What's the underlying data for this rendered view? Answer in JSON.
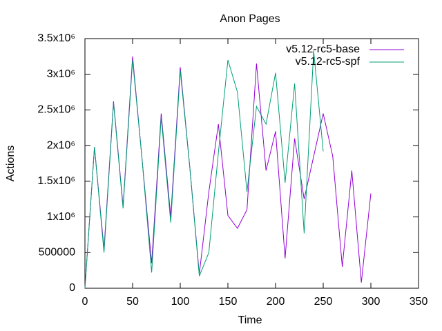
{
  "chart_data": {
    "type": "line",
    "title": "Anon Pages",
    "x_label": "Time",
    "y_label": "Actions",
    "xlim": [
      0,
      350
    ],
    "xticks": [
      0,
      50,
      100,
      150,
      200,
      250,
      300,
      350
    ],
    "ylim": [
      0,
      3500000
    ],
    "yticks": [
      0,
      500000,
      {
        "value": 1000000,
        "label": "1x10⁶"
      },
      {
        "value": 1500000,
        "label": "1.5x10⁶"
      },
      {
        "value": 2000000,
        "label": "2x10⁶"
      },
      {
        "value": 2500000,
        "label": "2.5x10⁶"
      },
      {
        "value": 3000000,
        "label": "3x10⁶"
      },
      {
        "value": 3500000,
        "label": "3.5x10⁶"
      }
    ],
    "grid": false,
    "legend": "top-right",
    "series": [
      {
        "name": "v5.12-rc5-base",
        "color": "#9400d3",
        "x": [
          0,
          10,
          20,
          30,
          40,
          50,
          60,
          70,
          80,
          90,
          100,
          110,
          120,
          130,
          140,
          150,
          160,
          170,
          180,
          190,
          200,
          210,
          220,
          230,
          240,
          250,
          260,
          270,
          280,
          290,
          300
        ],
        "values": [
          0,
          1980000,
          550000,
          2620000,
          1150000,
          3250000,
          1800000,
          350000,
          2450000,
          1000000,
          3100000,
          1700000,
          200000,
          1350000,
          2300000,
          1020000,
          840000,
          1100000,
          3150000,
          1650000,
          2200000,
          420000,
          2100000,
          1250000,
          1850000,
          2450000,
          1850000,
          300000,
          1650000,
          80000,
          1330000
        ]
      },
      {
        "name": "v5.12-rc5-spf",
        "color": "#009e73",
        "x": [
          0,
          10,
          20,
          30,
          40,
          50,
          60,
          70,
          80,
          90,
          100,
          110,
          120,
          130,
          140,
          150,
          160,
          170,
          180,
          190,
          200,
          210,
          220,
          230,
          240,
          250
        ],
        "values": [
          0,
          1980000,
          500000,
          2600000,
          1120000,
          3200000,
          1800000,
          220000,
          2400000,
          920000,
          3050000,
          1700000,
          170000,
          500000,
          1900000,
          3200000,
          2750000,
          1350000,
          2550000,
          2300000,
          3020000,
          1480000,
          2870000,
          770000,
          3330000,
          1920000
        ]
      }
    ]
  }
}
